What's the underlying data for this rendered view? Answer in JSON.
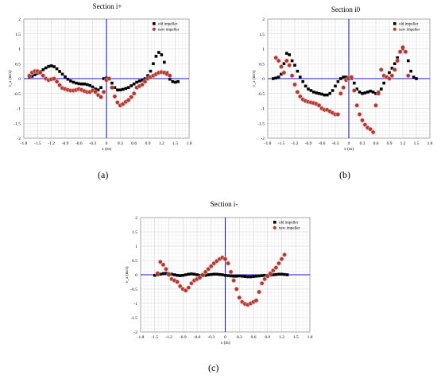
{
  "figure": {
    "labels": [
      "(a)",
      "(b)",
      "(c)"
    ]
  },
  "chart_data": [
    {
      "type": "scatter",
      "title": "Section i+",
      "xlabel": "x (m)",
      "ylabel": "v_a (m/s)",
      "xlim": [
        -1.8,
        1.8
      ],
      "ylim": [
        -2,
        2
      ],
      "x_ticks": [
        "-1.8",
        "-1.5",
        "-1.2",
        "-0.9",
        "-0.6",
        "-0.3",
        "0",
        "0.3",
        "0.6",
        "0.9",
        "1.2",
        "1.5",
        "1.8"
      ],
      "y_ticks": [
        "-2",
        "-1.5",
        "-1",
        "-0.5",
        "0",
        "0.5",
        "1",
        "1.5",
        "2"
      ],
      "grid": true,
      "legend": "top-right",
      "series": [
        {
          "name": "old impeller",
          "color": "#000000",
          "marker": "square",
          "x": [
            -1.68,
            -1.62,
            -1.56,
            -1.5,
            -1.44,
            -1.38,
            -1.32,
            -1.26,
            -1.2,
            -1.14,
            -1.08,
            -1.02,
            -0.96,
            -0.9,
            -0.84,
            -0.78,
            -0.72,
            -0.66,
            -0.6,
            -0.54,
            -0.48,
            -0.42,
            -0.36,
            -0.3,
            -0.24,
            -0.18,
            -0.12,
            -0.06,
            0.0,
            0.06,
            0.12,
            0.18,
            0.24,
            0.3,
            0.36,
            0.42,
            0.48,
            0.54,
            0.6,
            0.66,
            0.72,
            0.78,
            0.84,
            0.9,
            0.96,
            1.02,
            1.08,
            1.14,
            1.2,
            1.26,
            1.32,
            1.38,
            1.44,
            1.5,
            1.56
          ],
          "y": [
            0.05,
            0.08,
            0.13,
            0.18,
            0.24,
            0.3,
            0.36,
            0.41,
            0.43,
            0.4,
            0.33,
            0.24,
            0.15,
            0.06,
            -0.02,
            -0.08,
            -0.12,
            -0.15,
            -0.17,
            -0.18,
            -0.18,
            -0.2,
            -0.23,
            -0.28,
            -0.35,
            -0.38,
            -0.3,
            0.0,
            0.02,
            0.0,
            -0.15,
            -0.3,
            -0.38,
            -0.38,
            -0.36,
            -0.33,
            -0.3,
            -0.24,
            -0.18,
            -0.12,
            -0.08,
            -0.05,
            0.0,
            0.1,
            0.25,
            0.5,
            0.75,
            0.88,
            0.8,
            0.55,
            0.2,
            -0.02,
            -0.1,
            -0.12,
            -0.1
          ]
        },
        {
          "name": "new impeller",
          "color": "#b5381e",
          "marker": "circle",
          "x": [
            -1.68,
            -1.62,
            -1.56,
            -1.5,
            -1.44,
            -1.38,
            -1.32,
            -1.26,
            -1.2,
            -1.14,
            -1.08,
            -1.02,
            -0.96,
            -0.9,
            -0.84,
            -0.78,
            -0.72,
            -0.66,
            -0.6,
            -0.54,
            -0.48,
            -0.42,
            -0.36,
            -0.3,
            -0.24,
            -0.18,
            -0.12,
            -0.06,
            0.0,
            0.06,
            0.12,
            0.18,
            0.24,
            0.3,
            0.36,
            0.42,
            0.48,
            0.54,
            0.6,
            0.66,
            0.72,
            0.78,
            0.84,
            0.9,
            0.96,
            1.02,
            1.08,
            1.14,
            1.2,
            1.26,
            1.32,
            1.38
          ],
          "y": [
            0.1,
            0.2,
            0.25,
            0.25,
            0.2,
            0.1,
            0.0,
            -0.05,
            -0.02,
            0.0,
            -0.1,
            -0.22,
            -0.32,
            -0.35,
            -0.38,
            -0.4,
            -0.4,
            -0.38,
            -0.35,
            -0.38,
            -0.42,
            -0.45,
            -0.45,
            -0.4,
            -0.45,
            -0.55,
            -0.62,
            -0.45,
            -0.05,
            0.0,
            -0.3,
            -0.6,
            -0.8,
            -0.9,
            -0.85,
            -0.78,
            -0.72,
            -0.62,
            -0.5,
            -0.3,
            -0.25,
            -0.2,
            -0.1,
            0.0,
            0.05,
            0.1,
            0.15,
            0.2,
            0.22,
            0.2,
            0.15,
            0.1
          ]
        }
      ]
    },
    {
      "type": "scatter",
      "title": "Section i0",
      "xlabel": "x (m)",
      "ylabel": "v_a (m/s)",
      "xlim": [
        -1.8,
        1.8
      ],
      "ylim": [
        -2,
        2
      ],
      "x_ticks": [
        "-1.8",
        "-1.5",
        "-1.2",
        "-0.9",
        "-0.6",
        "-0.3",
        "0",
        "0.3",
        "0.6",
        "0.9",
        "1.2",
        "1.5",
        "1.8"
      ],
      "y_ticks": [
        "-2",
        "-1.5",
        "-1",
        "-0.5",
        "0",
        "0.5",
        "1",
        "1.5",
        "2"
      ],
      "grid": true,
      "legend": "top-right",
      "series": [
        {
          "name": "old impeller",
          "color": "#000000",
          "marker": "square",
          "x": [
            -1.68,
            -1.62,
            -1.56,
            -1.5,
            -1.44,
            -1.38,
            -1.32,
            -1.26,
            -1.2,
            -1.14,
            -1.08,
            -1.02,
            -0.96,
            -0.9,
            -0.84,
            -0.78,
            -0.72,
            -0.66,
            -0.6,
            -0.54,
            -0.48,
            -0.42,
            -0.36,
            -0.3,
            -0.24,
            -0.18,
            -0.12,
            -0.06,
            0.0,
            0.06,
            0.12,
            0.18,
            0.24,
            0.3,
            0.36,
            0.42,
            0.48,
            0.54,
            0.6,
            0.66,
            0.72,
            0.78,
            0.84,
            0.9,
            0.96,
            1.02,
            1.08,
            1.14,
            1.2,
            1.26,
            1.32,
            1.38,
            1.44,
            1.5
          ],
          "y": [
            0.0,
            0.02,
            0.05,
            0.15,
            0.5,
            0.85,
            0.8,
            0.6,
            0.45,
            0.25,
            0.05,
            -0.1,
            -0.25,
            -0.35,
            -0.4,
            -0.45,
            -0.48,
            -0.5,
            -0.52,
            -0.55,
            -0.55,
            -0.5,
            -0.4,
            -0.25,
            -0.1,
            0.0,
            0.05,
            0.05,
            0.03,
            0.0,
            -0.15,
            -0.35,
            -0.45,
            -0.5,
            -0.48,
            -0.45,
            -0.42,
            -0.45,
            -0.5,
            -0.45,
            -0.35,
            -0.15,
            0.05,
            0.2,
            0.35,
            0.5,
            0.7,
            0.9,
            1.0,
            0.9,
            0.6,
            0.25,
            0.05,
            0.0
          ]
        },
        {
          "name": "new impeller",
          "color": "#b5381e",
          "marker": "circle",
          "x": [
            -1.62,
            -1.56,
            -1.5,
            -1.44,
            -1.38,
            -1.32,
            -1.26,
            -1.2,
            -1.14,
            -1.08,
            -1.02,
            -0.96,
            -0.9,
            -0.84,
            -0.78,
            -0.72,
            -0.66,
            -0.6,
            -0.54,
            -0.48,
            -0.42,
            -0.36,
            -0.3,
            -0.24,
            -0.18,
            -0.12,
            -0.06,
            0.0,
            0.06,
            0.12,
            0.18,
            0.24,
            0.3,
            0.36,
            0.42,
            0.48,
            0.54,
            0.6,
            0.66,
            0.72,
            0.78,
            0.84,
            0.9,
            0.96,
            1.02,
            1.08,
            1.14,
            1.2,
            1.26,
            1.32
          ],
          "y": [
            0.7,
            0.6,
            0.4,
            0.2,
            0.6,
            0.45,
            0.1,
            -0.2,
            -0.45,
            -0.6,
            -0.7,
            -0.75,
            -0.78,
            -0.8,
            -0.82,
            -0.85,
            -0.9,
            -1.0,
            -1.05,
            -1.05,
            -1.1,
            -1.15,
            -1.2,
            -1.2,
            -0.5,
            -0.3,
            -0.05,
            0.0,
            0.05,
            -0.4,
            -0.9,
            -1.2,
            -1.4,
            -1.55,
            -1.65,
            -1.7,
            -1.8,
            -0.9,
            -0.5,
            0.3,
            0.1,
            0.05,
            0.0,
            0.1,
            0.3,
            0.6,
            0.9,
            1.05,
            0.9,
            0.1
          ]
        }
      ]
    },
    {
      "type": "scatter",
      "title": "Section i-",
      "xlabel": "x (m)",
      "ylabel": "v_a (m/s)",
      "xlim": [
        -1.8,
        1.8
      ],
      "ylim": [
        -2,
        2
      ],
      "x_ticks": [
        "-1.8",
        "-1.5",
        "-1.2",
        "-0.9",
        "-0.6",
        "-0.3",
        "0",
        "0.3",
        "0.6",
        "0.9",
        "1.2",
        "1.5",
        "1.8"
      ],
      "y_ticks": [
        "-2",
        "-1.5",
        "-1",
        "-0.5",
        "0",
        "0.5",
        "1",
        "1.5",
        "2"
      ],
      "grid": true,
      "legend": "top-right",
      "series": [
        {
          "name": "old impeller",
          "color": "#000000",
          "marker": "square",
          "x": [
            -1.5,
            -1.44,
            -1.38,
            -1.32,
            -1.26,
            -1.2,
            -1.14,
            -1.08,
            -1.02,
            -0.96,
            -0.9,
            -0.84,
            -0.78,
            -0.72,
            -0.66,
            -0.6,
            -0.54,
            -0.48,
            -0.42,
            -0.36,
            -0.3,
            -0.24,
            -0.18,
            -0.12,
            -0.06,
            0.0,
            0.06,
            0.12,
            0.18,
            0.24,
            0.3,
            0.36,
            0.42,
            0.48,
            0.54,
            0.6,
            0.66,
            0.72,
            0.78,
            0.84,
            0.9,
            0.96,
            1.02,
            1.08,
            1.14,
            1.2,
            1.26,
            1.32
          ],
          "y": [
            -0.02,
            0.0,
            0.02,
            0.04,
            0.05,
            0.04,
            0.02,
            0.0,
            -0.02,
            -0.03,
            -0.02,
            0.0,
            0.02,
            0.03,
            0.02,
            0.0,
            -0.02,
            -0.03,
            -0.02,
            0.0,
            0.01,
            0.02,
            0.02,
            0.01,
            0.0,
            -0.02,
            -0.03,
            -0.04,
            -0.05,
            -0.05,
            -0.04,
            -0.05,
            -0.06,
            -0.07,
            -0.07,
            -0.06,
            -0.05,
            -0.04,
            -0.03,
            -0.02,
            -0.02,
            -0.01,
            0.0,
            0.01,
            0.02,
            0.02,
            0.01,
            0.0
          ]
        },
        {
          "name": "new impeller",
          "color": "#b5381e",
          "marker": "circle",
          "x": [
            -1.44,
            -1.38,
            -1.32,
            -1.26,
            -1.2,
            -1.14,
            -1.08,
            -1.02,
            -0.96,
            -0.9,
            -0.84,
            -0.78,
            -0.72,
            -0.66,
            -0.6,
            -0.54,
            -0.48,
            -0.42,
            -0.36,
            -0.3,
            -0.24,
            -0.18,
            -0.12,
            -0.06,
            0.0,
            0.06,
            0.12,
            0.18,
            0.24,
            0.3,
            0.36,
            0.42,
            0.48,
            0.54,
            0.6,
            0.66,
            0.72,
            0.78,
            0.84,
            0.9,
            0.96,
            1.02,
            1.08,
            1.14,
            1.2,
            1.26
          ],
          "y": [
            0.05,
            0.45,
            0.35,
            0.2,
            0.0,
            -0.15,
            -0.2,
            -0.25,
            -0.4,
            -0.5,
            -0.55,
            -0.45,
            -0.3,
            -0.2,
            -0.15,
            -0.1,
            0.0,
            0.1,
            0.2,
            0.3,
            0.4,
            0.48,
            0.55,
            0.6,
            0.55,
            0.4,
            0.1,
            -0.2,
            -0.5,
            -0.8,
            -0.95,
            -1.02,
            -1.05,
            -1.0,
            -0.95,
            -0.9,
            -0.6,
            -0.3,
            -0.15,
            -0.05,
            0.05,
            0.15,
            0.25,
            0.4,
            0.55,
            0.7
          ]
        }
      ]
    }
  ]
}
